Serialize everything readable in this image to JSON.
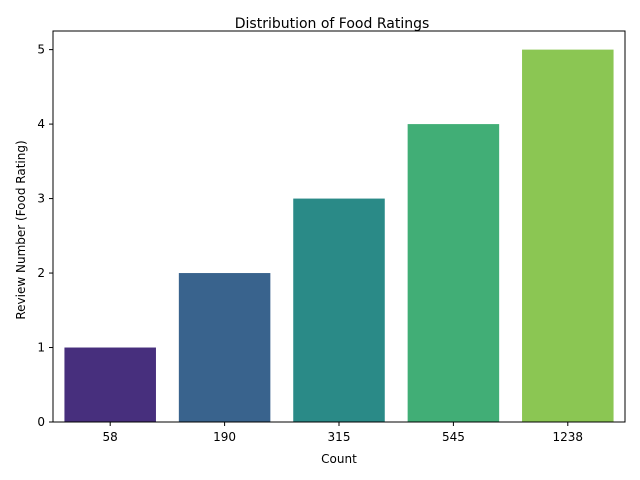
{
  "chart_data": {
    "type": "bar",
    "title": "Distribution of Food Ratings",
    "xlabel": "Count",
    "ylabel": "Review Number (Food Rating)",
    "categories": [
      "58",
      "190",
      "315",
      "545",
      "1238"
    ],
    "values": [
      1,
      2,
      3,
      4,
      5
    ],
    "ylim": [
      0,
      5.25
    ],
    "yticks": [
      0,
      1,
      2,
      3,
      4,
      5
    ],
    "colors": [
      "#472f7d",
      "#39638d",
      "#2a8a87",
      "#41ae76",
      "#8bc653"
    ],
    "grid": false,
    "legend": "none"
  }
}
